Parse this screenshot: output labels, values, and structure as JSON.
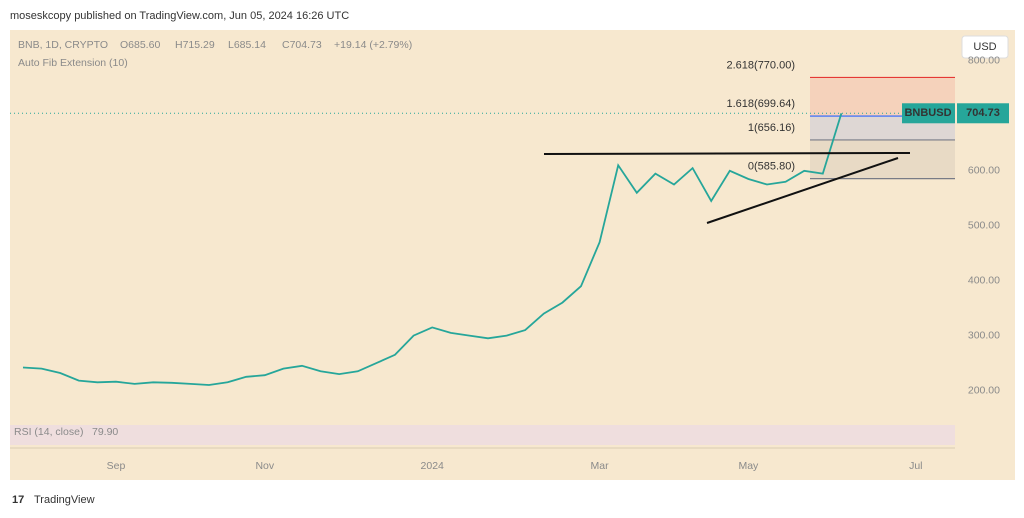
{
  "header": "moseskcopy published on TradingView.com, Jun 05, 2024 16:26 UTC",
  "chart_data": {
    "type": "line",
    "symbol": "BNB, 1D, CRYPTO",
    "ohlc": [
      "O685.60",
      "H715.29",
      "L685.14",
      "C704.73"
    ],
    "change": "+19.14 (+2.79%)",
    "indicator": "Auto Fib Extension (10)",
    "currency": "USD",
    "categories": [
      null,
      null,
      null,
      null,
      null,
      "Sep",
      null,
      null,
      null,
      null,
      null,
      null,
      null,
      "Nov",
      null,
      null,
      null,
      null,
      null,
      null,
      null,
      null,
      "2024",
      null,
      null,
      null,
      null,
      null,
      null,
      null,
      null,
      "Mar",
      null,
      null,
      null,
      null,
      null,
      null,
      null,
      "May",
      null,
      null,
      null,
      null,
      null,
      null,
      null,
      null,
      "Jul",
      null
    ],
    "series": [
      {
        "name": "BNBUSD",
        "color": "#26a69a",
        "values": [
          242,
          240,
          232,
          218,
          215,
          216,
          212,
          215,
          214,
          212,
          210,
          215,
          225,
          228,
          240,
          245,
          235,
          230,
          235,
          250,
          265,
          300,
          315,
          305,
          300,
          295,
          300,
          310,
          340,
          360,
          390,
          470,
          610,
          560,
          595,
          575,
          605,
          545,
          600,
          585,
          575,
          580,
          600,
          595,
          704.73,
          null,
          null,
          null,
          null,
          null
        ]
      }
    ],
    "ylim": [
      150,
      880
    ],
    "yticks": [
      {
        "value": 200,
        "label": "200.00"
      },
      {
        "value": 300,
        "label": "300.00"
      },
      {
        "value": 400,
        "label": "400.00"
      },
      {
        "value": 500,
        "label": "500.00"
      },
      {
        "value": 600,
        "label": "600.00"
      },
      {
        "value": 800,
        "label": "800.00"
      }
    ],
    "fib_levels": [
      {
        "value": 770,
        "label": "2.618(770.00)",
        "color": "#e53935"
      },
      {
        "value": 699.64,
        "label": "1.618(699.64)",
        "color": "#2962ff"
      },
      {
        "value": 656.16,
        "label": "1(656.16)",
        "color": "#787b86"
      },
      {
        "value": 585.8,
        "label": "0(585.80)",
        "color": "#787b86"
      }
    ],
    "rsi_label": "RSI (14, close)",
    "rsi_value": "79.90"
  },
  "footer": "TradingView"
}
